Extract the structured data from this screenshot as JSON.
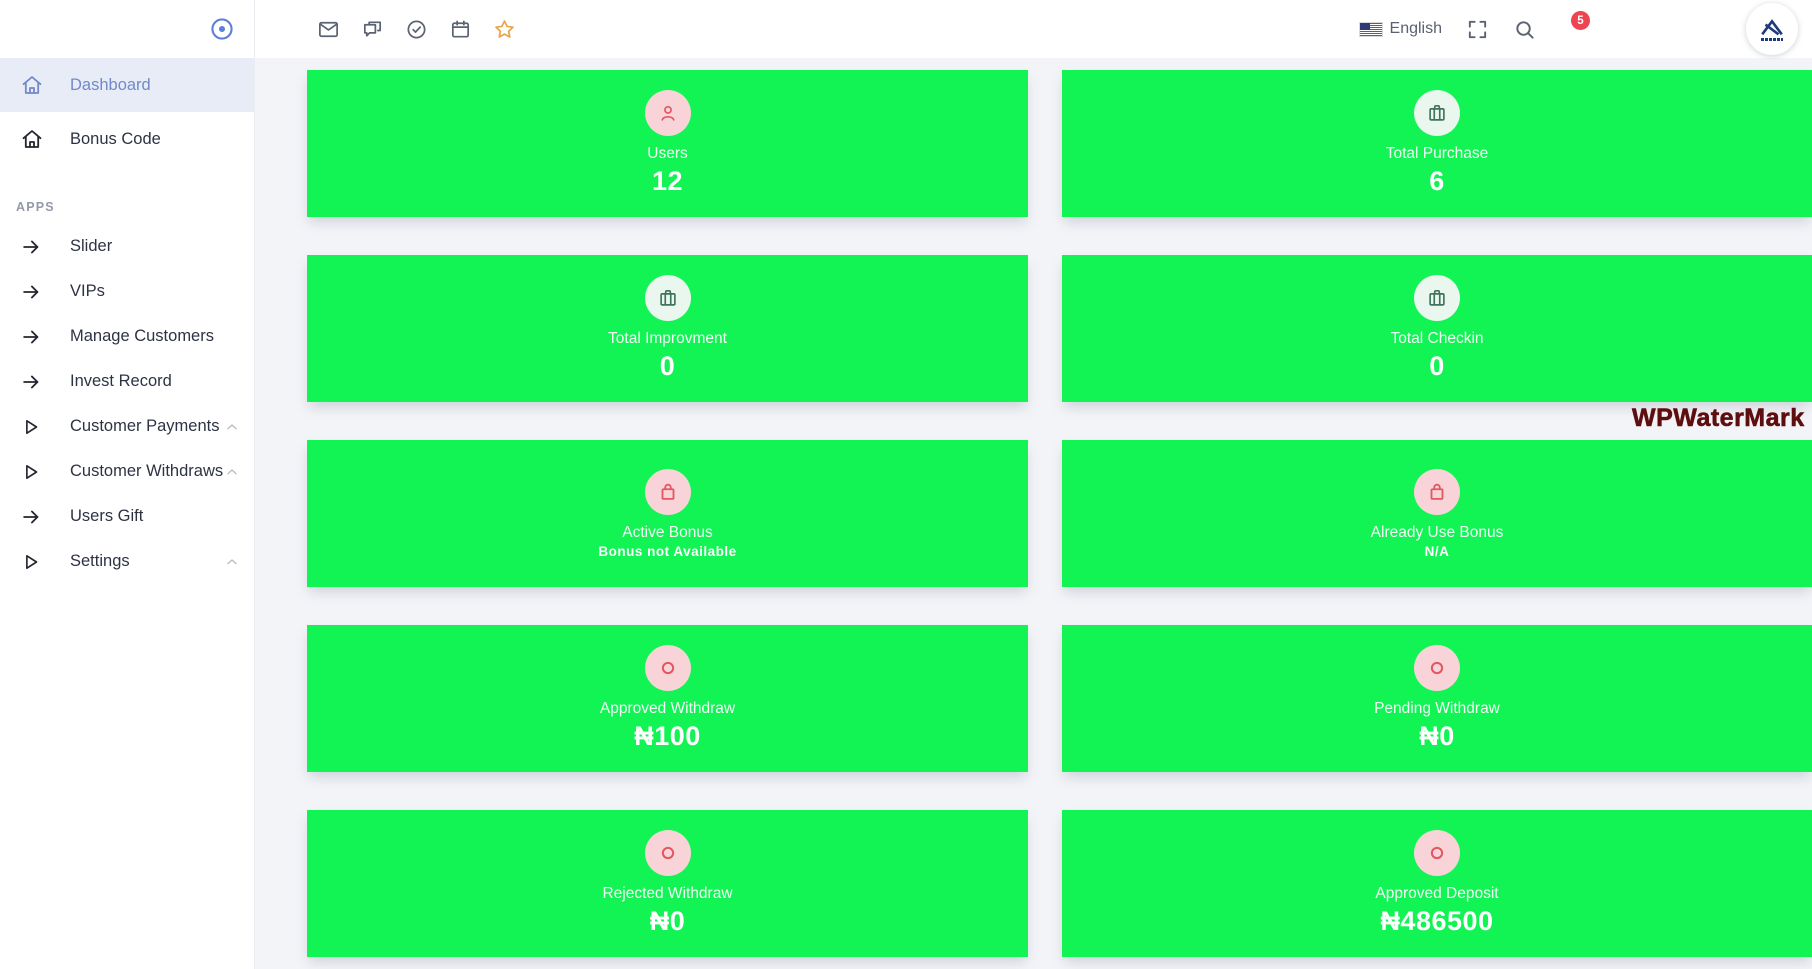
{
  "sidebar": {
    "main_items": [
      {
        "label": "Dashboard",
        "icon": "home",
        "active": true
      },
      {
        "label": "Bonus Code",
        "icon": "home",
        "active": false
      }
    ],
    "section_label": "APPS",
    "app_items": [
      {
        "label": "Slider",
        "icon": "arrow-right",
        "chevron": false
      },
      {
        "label": "VIPs",
        "icon": "arrow-right",
        "chevron": false
      },
      {
        "label": "Manage Customers",
        "icon": "arrow-right",
        "chevron": false
      },
      {
        "label": "Invest Record",
        "icon": "arrow-right",
        "chevron": false
      },
      {
        "label": "Customer Payments",
        "icon": "play",
        "chevron": true
      },
      {
        "label": "Customer Withdraws",
        "icon": "play",
        "chevron": true
      },
      {
        "label": "Users Gift",
        "icon": "arrow-right",
        "chevron": false
      },
      {
        "label": "Settings",
        "icon": "play",
        "chevron": true
      }
    ]
  },
  "topbar": {
    "left_icons": [
      "mail",
      "chat",
      "check-circle",
      "calendar",
      "star"
    ],
    "language": {
      "label": "English"
    },
    "notifications": {
      "count": "5"
    }
  },
  "stats_cards": [
    {
      "title": "Users",
      "value": "12",
      "icon": "user",
      "tone": "pink",
      "value_size": "big"
    },
    {
      "title": "Total Purchase",
      "value": "6",
      "icon": "briefcase",
      "tone": "green",
      "value_size": "big"
    },
    {
      "title": "Total Improvment",
      "value": "0",
      "icon": "briefcase",
      "tone": "green",
      "value_size": "big"
    },
    {
      "title": "Total Checkin",
      "value": "0",
      "icon": "briefcase",
      "tone": "green",
      "value_size": "big"
    },
    {
      "title": "Active Bonus",
      "value": "Bonus not Available",
      "icon": "bag",
      "tone": "pink",
      "value_size": "small"
    },
    {
      "title": "Already Use Bonus",
      "value": "N/A",
      "icon": "bag",
      "tone": "pink",
      "value_size": "small"
    },
    {
      "title": "Approved Withdraw",
      "value": "₦100",
      "icon": "ring",
      "tone": "pink",
      "value_size": "big"
    },
    {
      "title": "Pending Withdraw",
      "value": "₦0",
      "icon": "ring",
      "tone": "pink",
      "value_size": "big"
    },
    {
      "title": "Rejected Withdraw",
      "value": "₦0",
      "icon": "ring",
      "tone": "pink",
      "value_size": "big"
    },
    {
      "title": "Approved Deposit",
      "value": "₦486500",
      "icon": "ring",
      "tone": "pink",
      "value_size": "big"
    }
  ],
  "watermark": {
    "text": "WPWaterMark"
  },
  "colors": {
    "card_green": "#11f454",
    "accent_blue": "#5d7fd9",
    "badge_red": "#ee4451",
    "icon_pink_bg": "#f8d4d8",
    "icon_pink_fg": "#e25762",
    "icon_green_bg": "#e9f7ef",
    "icon_green_fg": "#40735f",
    "watermark_maroon": "#5e0e0e"
  }
}
